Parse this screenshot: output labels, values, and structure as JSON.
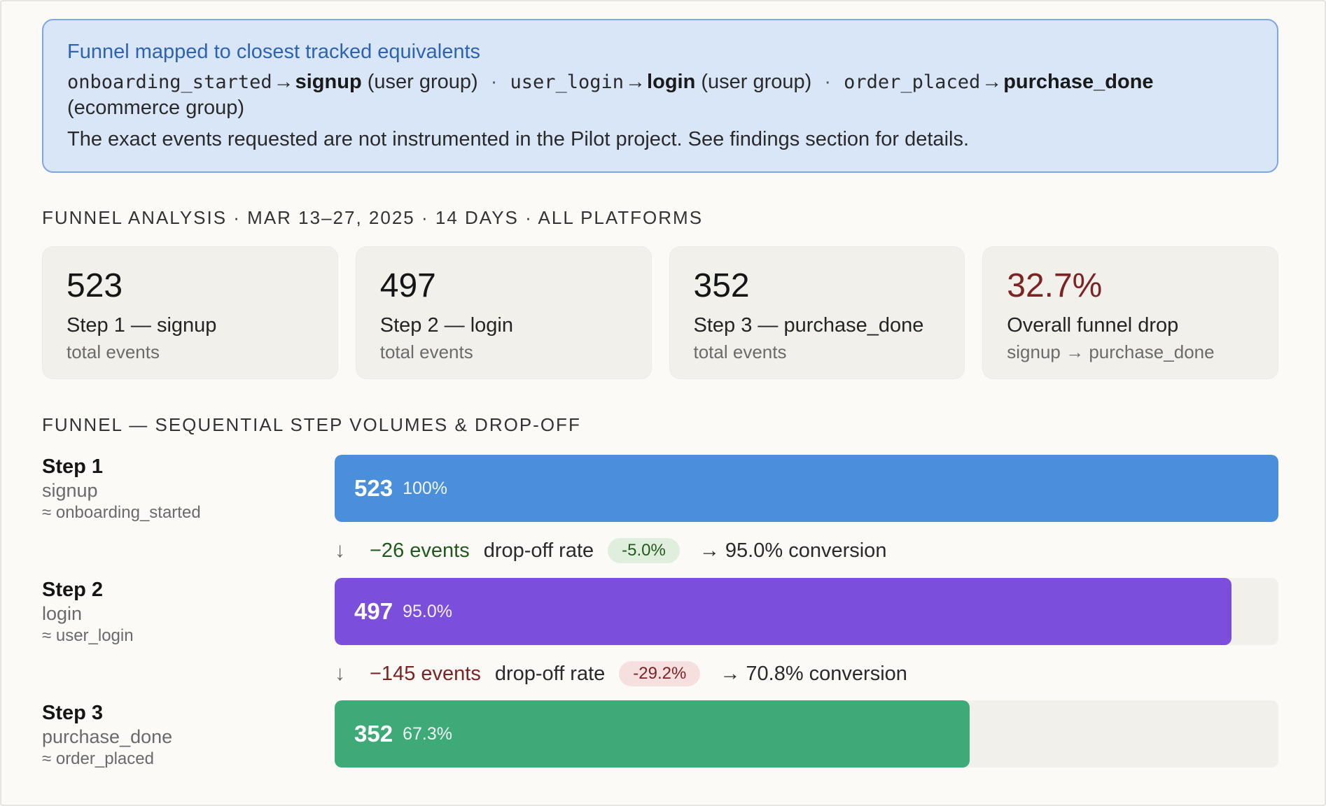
{
  "notice": {
    "title": "Funnel mapped to closest tracked equivalents",
    "mappings": [
      {
        "from": "onboarding_started",
        "arrow": "→",
        "to": "signup",
        "group": "(user group)"
      },
      {
        "from": "user_login",
        "arrow": "→",
        "to": "login",
        "group": "(user group)"
      },
      {
        "from": "order_placed",
        "arrow": "→",
        "to": "purchase_done",
        "group": "(ecommerce group)"
      }
    ],
    "separator": "·",
    "note": "The exact events requested are not instrumented in the Pilot project. See findings section for details."
  },
  "analysis_heading": "FUNNEL ANALYSIS · MAR 13–27, 2025 · 14 DAYS · ALL PLATFORMS",
  "cards": [
    {
      "value": "523",
      "label": "Step 1 — signup",
      "sub": "total events"
    },
    {
      "value": "497",
      "label": "Step 2 — login",
      "sub": "total events"
    },
    {
      "value": "352",
      "label": "Step 3 — purchase_done",
      "sub": "total events"
    },
    {
      "value": "32.7%",
      "label": "Overall funnel drop",
      "sub": "signup → purchase_done"
    }
  ],
  "funnel_heading": "FUNNEL — SEQUENTIAL STEP VOLUMES & DROP-OFF",
  "colors": {
    "step1": "#4a8fd9",
    "step2": "#7b4edb",
    "step3": "#3daa78",
    "alert": "#7c2323"
  },
  "chart_data": {
    "type": "bar",
    "orientation": "horizontal",
    "title": "FUNNEL — SEQUENTIAL STEP VOLUMES & DROP-OFF",
    "categories": [
      "signup",
      "login",
      "purchase_done"
    ],
    "values": [
      523,
      497,
      352
    ],
    "percent_of_first": [
      "100%",
      "95.0%",
      "67.3%"
    ],
    "steps": [
      {
        "title": "Step 1",
        "name": "signup",
        "source": "≈ onboarding_started",
        "value": 523,
        "pct_label": "100%",
        "color": "#4a8fd9"
      },
      {
        "title": "Step 2",
        "name": "login",
        "source": "≈ user_login",
        "value": 497,
        "pct_label": "95.0%",
        "color": "#7b4edb"
      },
      {
        "title": "Step 3",
        "name": "purchase_done",
        "source": "≈ order_placed",
        "value": 352,
        "pct_label": "67.3%",
        "color": "#3daa78"
      }
    ],
    "dropoffs": [
      {
        "arrow": "↓",
        "events": "−26 events",
        "label": "drop-off rate",
        "rate": "-5.0%",
        "conversion": "→ 95.0% conversion",
        "tone": "green"
      },
      {
        "arrow": "↓",
        "events": "−145 events",
        "label": "drop-off rate",
        "rate": "-29.2%",
        "conversion": "→ 70.8% conversion",
        "tone": "red"
      }
    ],
    "xlim": [
      0,
      523
    ]
  }
}
